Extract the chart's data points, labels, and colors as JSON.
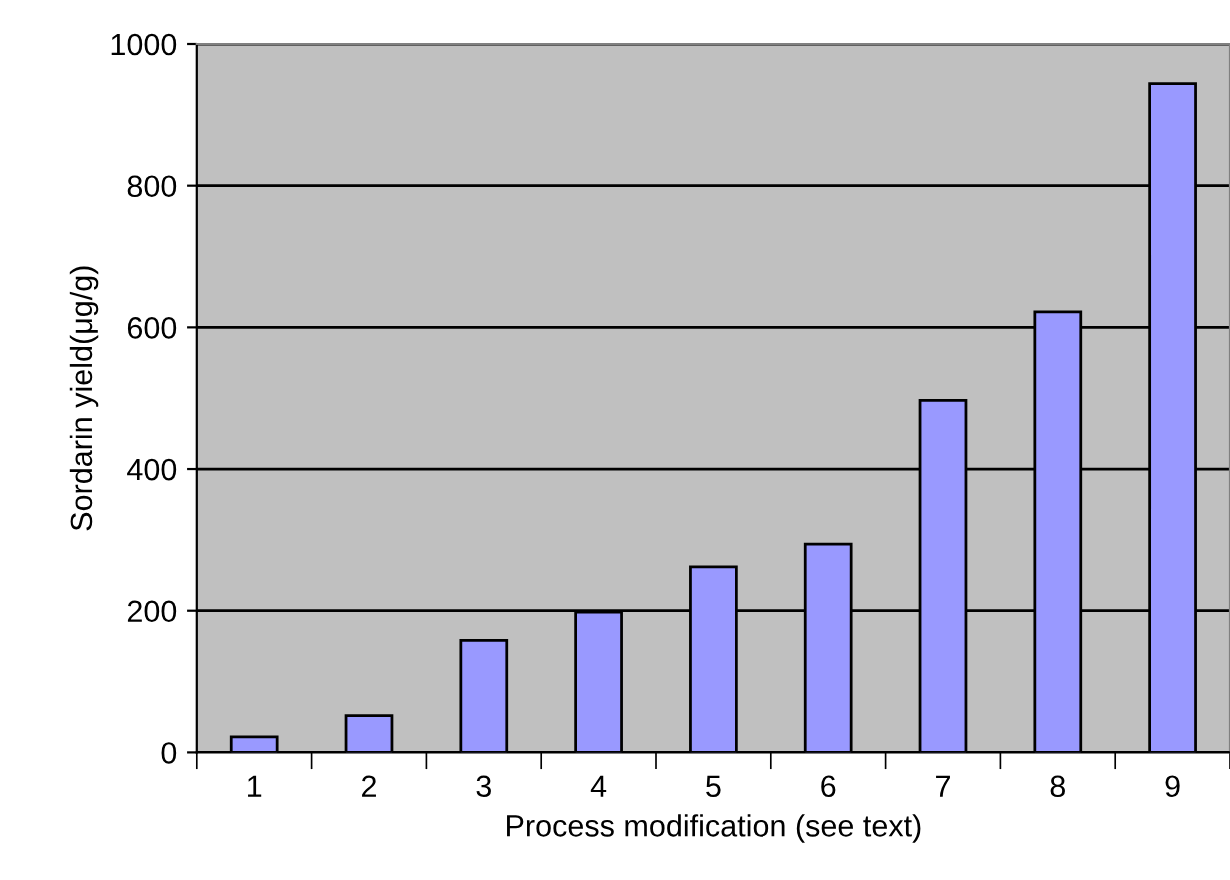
{
  "chart_data": {
    "type": "bar",
    "xlabel": "Process modification (see text)",
    "ylabel": "Sordarin yield(μg/g)",
    "categories": [
      "1",
      "2",
      "3",
      "4",
      "5",
      "6",
      "7",
      "8",
      "9"
    ],
    "values": [
      22,
      52,
      158,
      198,
      262,
      294,
      497,
      622,
      944
    ],
    "color": "#9999ff",
    "ylim": [
      0,
      1000
    ],
    "yticks": [
      0,
      200,
      400,
      600,
      800,
      1000
    ],
    "grid": "y"
  }
}
